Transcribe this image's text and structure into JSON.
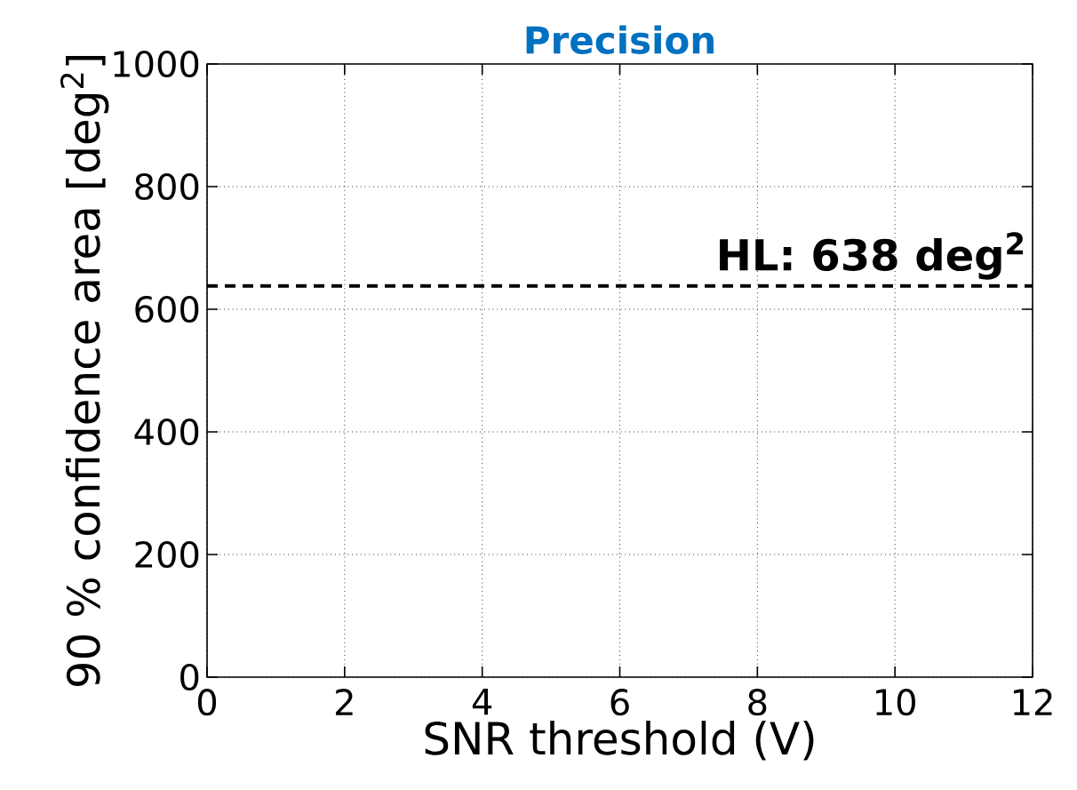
{
  "chart_data": {
    "type": "line",
    "title": "Precision",
    "xlabel": "SNR threshold (V)",
    "ylabel": "90 % confidence area [deg$^{2}$]",
    "xlim": [
      0,
      12
    ],
    "ylim": [
      0,
      1000
    ],
    "xticks": [
      0,
      2,
      4,
      6,
      8,
      10,
      12
    ],
    "yticks": [
      0,
      200,
      400,
      600,
      800,
      1000
    ],
    "grid": true,
    "ref_lines": [
      {
        "axis": "y",
        "value": 638,
        "label": "HL: 638 deg$^{2}$",
        "color": "#000000",
        "line_style": "dashed"
      }
    ]
  }
}
